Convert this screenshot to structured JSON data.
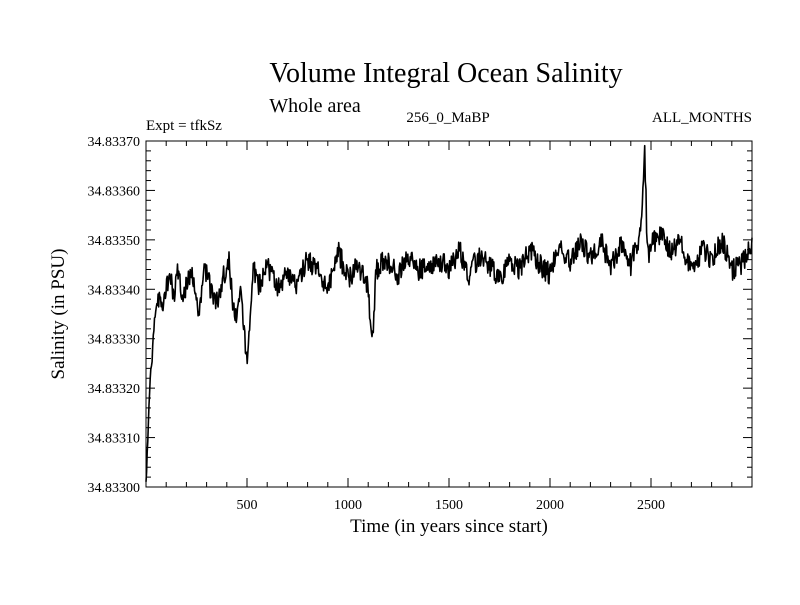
{
  "chart_data": {
    "type": "line",
    "title": "Volume Integral Ocean Salinity",
    "subtitle": "Whole area",
    "header_left": "Expt = tfkSz",
    "header_center": "256_0_MaBP",
    "header_right": "ALL_MONTHS",
    "xlabel": "Time (in years since start)",
    "ylabel": "Salinity (in PSU)",
    "xlim": [
      0,
      3000
    ],
    "ylim": [
      34.833,
      34.8337
    ],
    "xticks": [
      500,
      1000,
      1500,
      2000,
      2500
    ],
    "xtick_labels": [
      "500",
      "1000",
      "1500",
      "2000",
      "2500"
    ],
    "yticks": [
      34.833,
      34.8331,
      34.8332,
      34.8333,
      34.8334,
      34.8335,
      34.8336,
      34.8337
    ],
    "ytick_labels": [
      "34.83300",
      "34.83310",
      "34.83320",
      "34.83330",
      "34.83340",
      "34.83350",
      "34.83360",
      "34.83370"
    ],
    "grid": false,
    "series": [
      {
        "name": "Salinity",
        "color": "#000000",
        "x": [
          0,
          10,
          20,
          30,
          40,
          60,
          80,
          100,
          120,
          140,
          160,
          180,
          200,
          230,
          260,
          290,
          320,
          350,
          380,
          410,
          440,
          470,
          500,
          530,
          560,
          600,
          650,
          700,
          750,
          800,
          850,
          900,
          950,
          1000,
          1050,
          1100,
          1120,
          1140,
          1180,
          1250,
          1300,
          1350,
          1400,
          1450,
          1500,
          1550,
          1600,
          1650,
          1700,
          1750,
          1800,
          1850,
          1900,
          1950,
          2000,
          2050,
          2100,
          2150,
          2200,
          2250,
          2300,
          2350,
          2400,
          2450,
          2470,
          2480,
          2490,
          2500,
          2550,
          2600,
          2650,
          2700,
          2750,
          2800,
          2850,
          2900,
          2950,
          3000
        ],
        "y": [
          34.83301,
          34.8331,
          34.83322,
          34.83326,
          34.83333,
          34.83338,
          34.83336,
          34.8334,
          34.83342,
          34.83339,
          34.83344,
          34.83338,
          34.83341,
          34.83343,
          34.83335,
          34.83345,
          34.8334,
          34.83337,
          34.83342,
          34.83346,
          34.83333,
          34.8334,
          34.83324,
          34.83344,
          34.83341,
          34.83345,
          34.8334,
          34.83343,
          34.83341,
          34.83346,
          34.83344,
          34.83339,
          34.83348,
          34.83342,
          34.83345,
          34.8334,
          34.83329,
          34.83344,
          34.83346,
          34.83343,
          34.83347,
          34.83344,
          34.83345,
          34.83346,
          34.83344,
          34.83348,
          34.83343,
          34.83347,
          34.83345,
          34.83342,
          34.83346,
          34.83344,
          34.83348,
          34.83345,
          34.83343,
          34.83349,
          34.83345,
          34.8335,
          34.83346,
          34.8335,
          34.83345,
          34.83349,
          34.83345,
          34.83352,
          34.83368,
          34.83348,
          34.83347,
          34.83349,
          34.83351,
          34.83347,
          34.8335,
          34.83343,
          34.83348,
          34.83346,
          34.8335,
          34.83344,
          34.83345,
          34.83349
        ]
      }
    ]
  }
}
